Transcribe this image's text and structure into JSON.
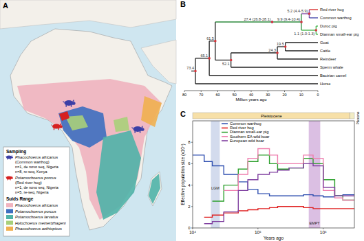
{
  "map": {
    "label": "A",
    "sampling_title": "Sampling",
    "sampling": [
      {
        "species": "Phacochoerus africanus",
        "common_name": "(Common warthog)",
        "color": "#3b3fa6",
        "samples": [
          "n=1, de novo seq, Nigeria",
          "n=8, re-seq, Kenya"
        ]
      },
      {
        "species": "Potamochoerus porcus",
        "common_name": "(Red river hog)",
        "color": "#d62020",
        "samples": [
          "n=1, de novo seq, Nigeria",
          "n=5, re-seq, Nigeria"
        ]
      }
    ],
    "range_title": "Suids Range",
    "ranges": [
      {
        "species": "Phacochoerus africanus",
        "color": "#f0b3bf"
      },
      {
        "species": "Potamochoerus porcus",
        "color": "#3d6fc0"
      },
      {
        "species": "Potamochoerus larvatus",
        "color": "#4fb3a8"
      },
      {
        "species": "Hylochoerus meinertzhageni",
        "color": "#a8d07a"
      },
      {
        "species": "Phacochoerus aethiopicus",
        "color": "#f0b050"
      }
    ]
  },
  "tree": {
    "label": "B",
    "x_label": "Million years ago",
    "xlim": [
      80,
      0
    ],
    "xticks": [
      80,
      70,
      60,
      50,
      40,
      30,
      20,
      10,
      0
    ],
    "root": {
      "age": 73.4,
      "label": "73.4",
      "children": [
        {
          "age": 65.1,
          "label": "65.1",
          "children": [
            {
              "age": 61.5,
              "label": "61.5",
              "children": [
                {
                  "age": 27.4,
                  "label": "27.4 (26.8-28.1)",
                  "ci": [
                    26.8,
                    28.1
                  ],
                  "color": "#2e8b3e",
                  "children": [
                    {
                      "age": 9.9,
                      "label": "9.9 (9.4-10.4)",
                      "ci": [
                        9.4,
                        10.4
                      ],
                      "children": [
                        {
                          "age": 5.2,
                          "label": "5.2 (4.4-5.9)",
                          "ci": [
                            4.4,
                            5.9
                          ],
                          "color": "#7a3fa0",
                          "children": [
                            {
                              "age": 0,
                              "label": "Red river hog",
                              "color": "#d62020"
                            },
                            {
                              "age": 0,
                              "label": "Common warthog",
                              "color": "#3b3fa6"
                            }
                          ]
                        },
                        {
                          "age": 1.1,
                          "label": "1.1 (1.0-1.3)",
                          "ci": [
                            1.0,
                            1.3
                          ],
                          "color": "#3cb043",
                          "children": [
                            {
                              "age": 0,
                              "label": "Duroc pig"
                            },
                            {
                              "age": 0,
                              "label": "Diannan small-ear pig"
                            }
                          ]
                        }
                      ]
                    }
                  ]
                },
                {
                  "age": 52.1,
                  "label": "52.1",
                  "children": [
                    {
                      "age": 24.3,
                      "label": "24.3",
                      "children": [
                        {
                          "age": 19.5,
                          "label": "19.5",
                          "children": [
                            {
                              "age": 0,
                              "label": "Goat"
                            },
                            {
                              "age": 0,
                              "label": "Cattle"
                            }
                          ]
                        },
                        {
                          "age": 0,
                          "label": "Reindeer"
                        }
                      ]
                    },
                    {
                      "age": 0,
                      "label": "Sperm whale"
                    }
                  ]
                }
              ]
            },
            {
              "age": 0,
              "label": "Bactrian camel"
            }
          ]
        },
        {
          "age": 0,
          "label": "Horse"
        }
      ]
    }
  },
  "chart_data": {
    "type": "line",
    "title": "C",
    "x_label": "Years ago",
    "y_label": "Effective population size (x10⁴)",
    "log": "x",
    "line_style": "steps",
    "legend": "upper left",
    "grid": false,
    "xlim": [
      10000,
      3000000
    ],
    "xticks": [
      {
        "value": 10000,
        "label": "10⁴"
      },
      {
        "value": 100000,
        "label": "10⁵"
      },
      {
        "value": 1000000,
        "label": "10⁶"
      }
    ],
    "ylim": [
      0,
      10
    ],
    "yticks": [
      0,
      2,
      4,
      6,
      8
    ],
    "x": [
      10000,
      15000,
      20000,
      30000,
      50000,
      70000,
      100000,
      150000,
      200000,
      300000,
      500000,
      700000,
      1000000,
      1500000,
      2000000,
      3000000
    ],
    "series": [
      {
        "name": "Common warthog",
        "color": "#2f4fb0",
        "values": [
          6.8,
          6.2,
          5.8,
          5.0,
          4.3,
          3.6,
          3.2,
          3.0,
          3.0,
          3.0,
          3.1,
          3.0,
          2.9,
          3.0,
          3.1,
          3.1
        ]
      },
      {
        "name": "Red river hog",
        "color": "#e02020",
        "values": [
          null,
          1.0,
          1.2,
          1.4,
          1.6,
          1.7,
          1.8,
          1.9,
          2.0,
          2.0,
          1.9,
          1.8,
          1.8,
          1.8,
          1.8,
          1.8
        ]
      },
      {
        "name": "Diannan small-ear pig",
        "color": "#2ca02c",
        "values": [
          null,
          null,
          2.5,
          4.0,
          5.5,
          6.2,
          6.8,
          6.0,
          5.5,
          5.6,
          6.5,
          6.0,
          4.5,
          3.0,
          2.6,
          2.6
        ]
      },
      {
        "name": "Southern EA wild boar",
        "color": "#ee7fae",
        "values": [
          null,
          null,
          null,
          3.5,
          5.0,
          6.5,
          7.4,
          6.8,
          6.0,
          6.0,
          6.8,
          6.5,
          3.5,
          2.8,
          2.6,
          2.6
        ]
      },
      {
        "name": "European wild boar",
        "color": "#8040a0",
        "values": [
          null,
          0.4,
          0.6,
          1.5,
          3.5,
          4.5,
          5.0,
          5.2,
          5.4,
          5.6,
          6.0,
          5.8,
          3.8,
          3.0,
          3.0,
          3.0
        ]
      }
    ],
    "annotations": [
      {
        "label": "LGM",
        "x": [
          19000,
          26000
        ],
        "color": "#9db0d8"
      },
      {
        "label": "EMPT",
        "x": [
          600000,
          900000
        ],
        "color": "#b070c0"
      }
    ],
    "epochs": [
      {
        "label": "Pleistocene",
        "x": [
          10000,
          2580000
        ],
        "color": "#f7e0a8"
      },
      {
        "label": "Pliocene",
        "x": [
          2580000,
          3000000
        ],
        "color": "#f2ecc4"
      }
    ]
  }
}
